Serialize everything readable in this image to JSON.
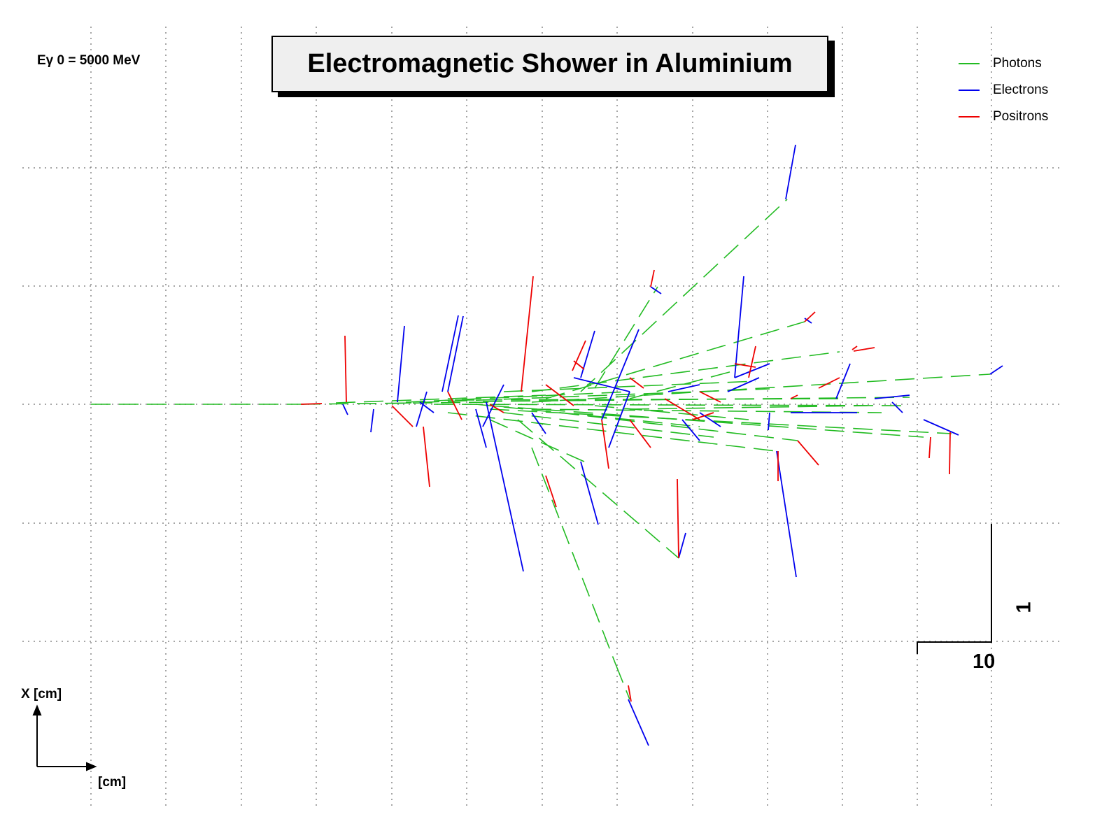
{
  "title": "Electromagnetic Shower in Aluminium",
  "energy_label": "Eγ 0 = 5000 MeV",
  "legend": [
    {
      "name": "Photons",
      "color": "#22bb22"
    },
    {
      "name": "Electrons",
      "color": "#0000ee"
    },
    {
      "name": "Positrons",
      "color": "#ee0000"
    }
  ],
  "scale_bar": {
    "horizontal_label": "10",
    "vertical_label": "1"
  },
  "axes": {
    "x_label": "X [cm]",
    "z_label": "[cm]"
  },
  "colors": {
    "photon": "#22bb22",
    "electron": "#0000ee",
    "positron": "#ee0000",
    "grid": "#888888"
  },
  "grid": "dotted"
}
